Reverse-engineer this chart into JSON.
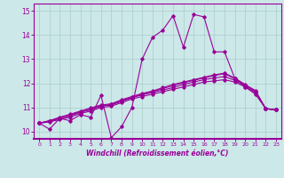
{
  "xlabel": "Windchill (Refroidissement éolien,°C)",
  "xlim": [
    -0.5,
    23.5
  ],
  "ylim": [
    9.7,
    15.3
  ],
  "xticks": [
    0,
    1,
    2,
    3,
    4,
    5,
    6,
    7,
    8,
    9,
    10,
    11,
    12,
    13,
    14,
    15,
    16,
    17,
    18,
    19,
    20,
    21,
    22,
    23
  ],
  "yticks": [
    10,
    11,
    12,
    13,
    14,
    15
  ],
  "bg_color": "#cce8e8",
  "line_color": "#990099",
  "grid_color": "#aacccc",
  "jagged_series": [
    10.35,
    10.1,
    10.55,
    10.45,
    10.7,
    10.6,
    11.5,
    9.75,
    10.2,
    11.0,
    13.0,
    13.9,
    14.2,
    14.8,
    13.5,
    14.85,
    14.75,
    13.3,
    13.3,
    12.2,
    11.85,
    11.55,
    10.95,
    10.9
  ],
  "smooth_series": [
    [
      10.35,
      10.4,
      10.5,
      10.6,
      10.75,
      10.85,
      11.0,
      11.05,
      11.2,
      11.35,
      11.45,
      11.55,
      11.65,
      11.75,
      11.85,
      11.95,
      12.05,
      12.1,
      12.15,
      12.05,
      11.85,
      11.6,
      10.95,
      10.9
    ],
    [
      10.35,
      10.45,
      10.55,
      10.65,
      10.8,
      10.9,
      11.05,
      11.1,
      11.25,
      11.4,
      11.52,
      11.62,
      11.72,
      11.82,
      11.95,
      12.05,
      12.15,
      12.22,
      12.28,
      12.12,
      11.9,
      11.65,
      10.95,
      10.9
    ],
    [
      10.35,
      10.42,
      10.55,
      10.68,
      10.82,
      10.95,
      11.08,
      11.12,
      11.28,
      11.42,
      11.55,
      11.65,
      11.78,
      11.9,
      12.02,
      12.12,
      12.22,
      12.32,
      12.4,
      12.18,
      11.92,
      11.67,
      10.95,
      10.9
    ],
    [
      10.35,
      10.45,
      10.6,
      10.72,
      10.85,
      10.98,
      11.1,
      11.15,
      11.32,
      11.45,
      11.58,
      11.68,
      11.82,
      11.95,
      12.05,
      12.15,
      12.25,
      12.35,
      12.42,
      12.22,
      11.95,
      11.7,
      10.95,
      10.9
    ]
  ]
}
